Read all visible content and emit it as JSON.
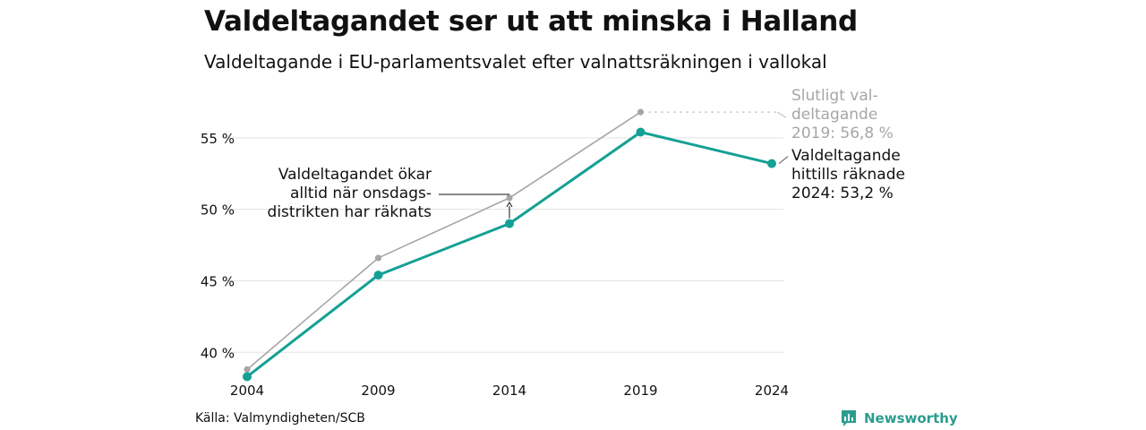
{
  "title": "Valdeltagandet ser ut att minska i Halland",
  "subtitle": "Valdeltagande i EU-parlamentsvalet efter valnattsräkningen i vallokal",
  "source": "Källa: Valmyndigheten/SCB",
  "brand": "Newsworthy",
  "colors": {
    "accent": "#14a095",
    "final": "#a6a6a6",
    "grid": "#e3e3e3",
    "text": "#111111",
    "brand": "#2a9d8f"
  },
  "chart_data": {
    "type": "line",
    "categories": [
      "2004",
      "2009",
      "2014",
      "2019",
      "2024"
    ],
    "series": [
      {
        "name": "Slutligt valdeltagande",
        "values": [
          38.8,
          46.6,
          50.8,
          56.8,
          null
        ],
        "color": "#a6a6a6"
      },
      {
        "name": "Valdeltagande hittills räknade",
        "values": [
          38.3,
          45.4,
          49.0,
          55.4,
          53.2
        ],
        "color": "#14a095"
      }
    ],
    "y_ticks": [
      40,
      45,
      50,
      55
    ],
    "y_tick_labels": [
      "40 %",
      "45 %",
      "50 %",
      "55 %"
    ],
    "ylim": [
      37.2,
      58.5
    ],
    "grid": true,
    "annotations": {
      "final_label": [
        "Slutligt val-",
        "deltagande",
        "2019: 56,8 %"
      ],
      "current_label": [
        "Valdeltagande",
        "hittills räknade",
        "2024: 53,2 %"
      ],
      "note": [
        "Valdeltagandet ökar",
        "alltid när onsdags-",
        "distrikten har räknats"
      ]
    }
  }
}
